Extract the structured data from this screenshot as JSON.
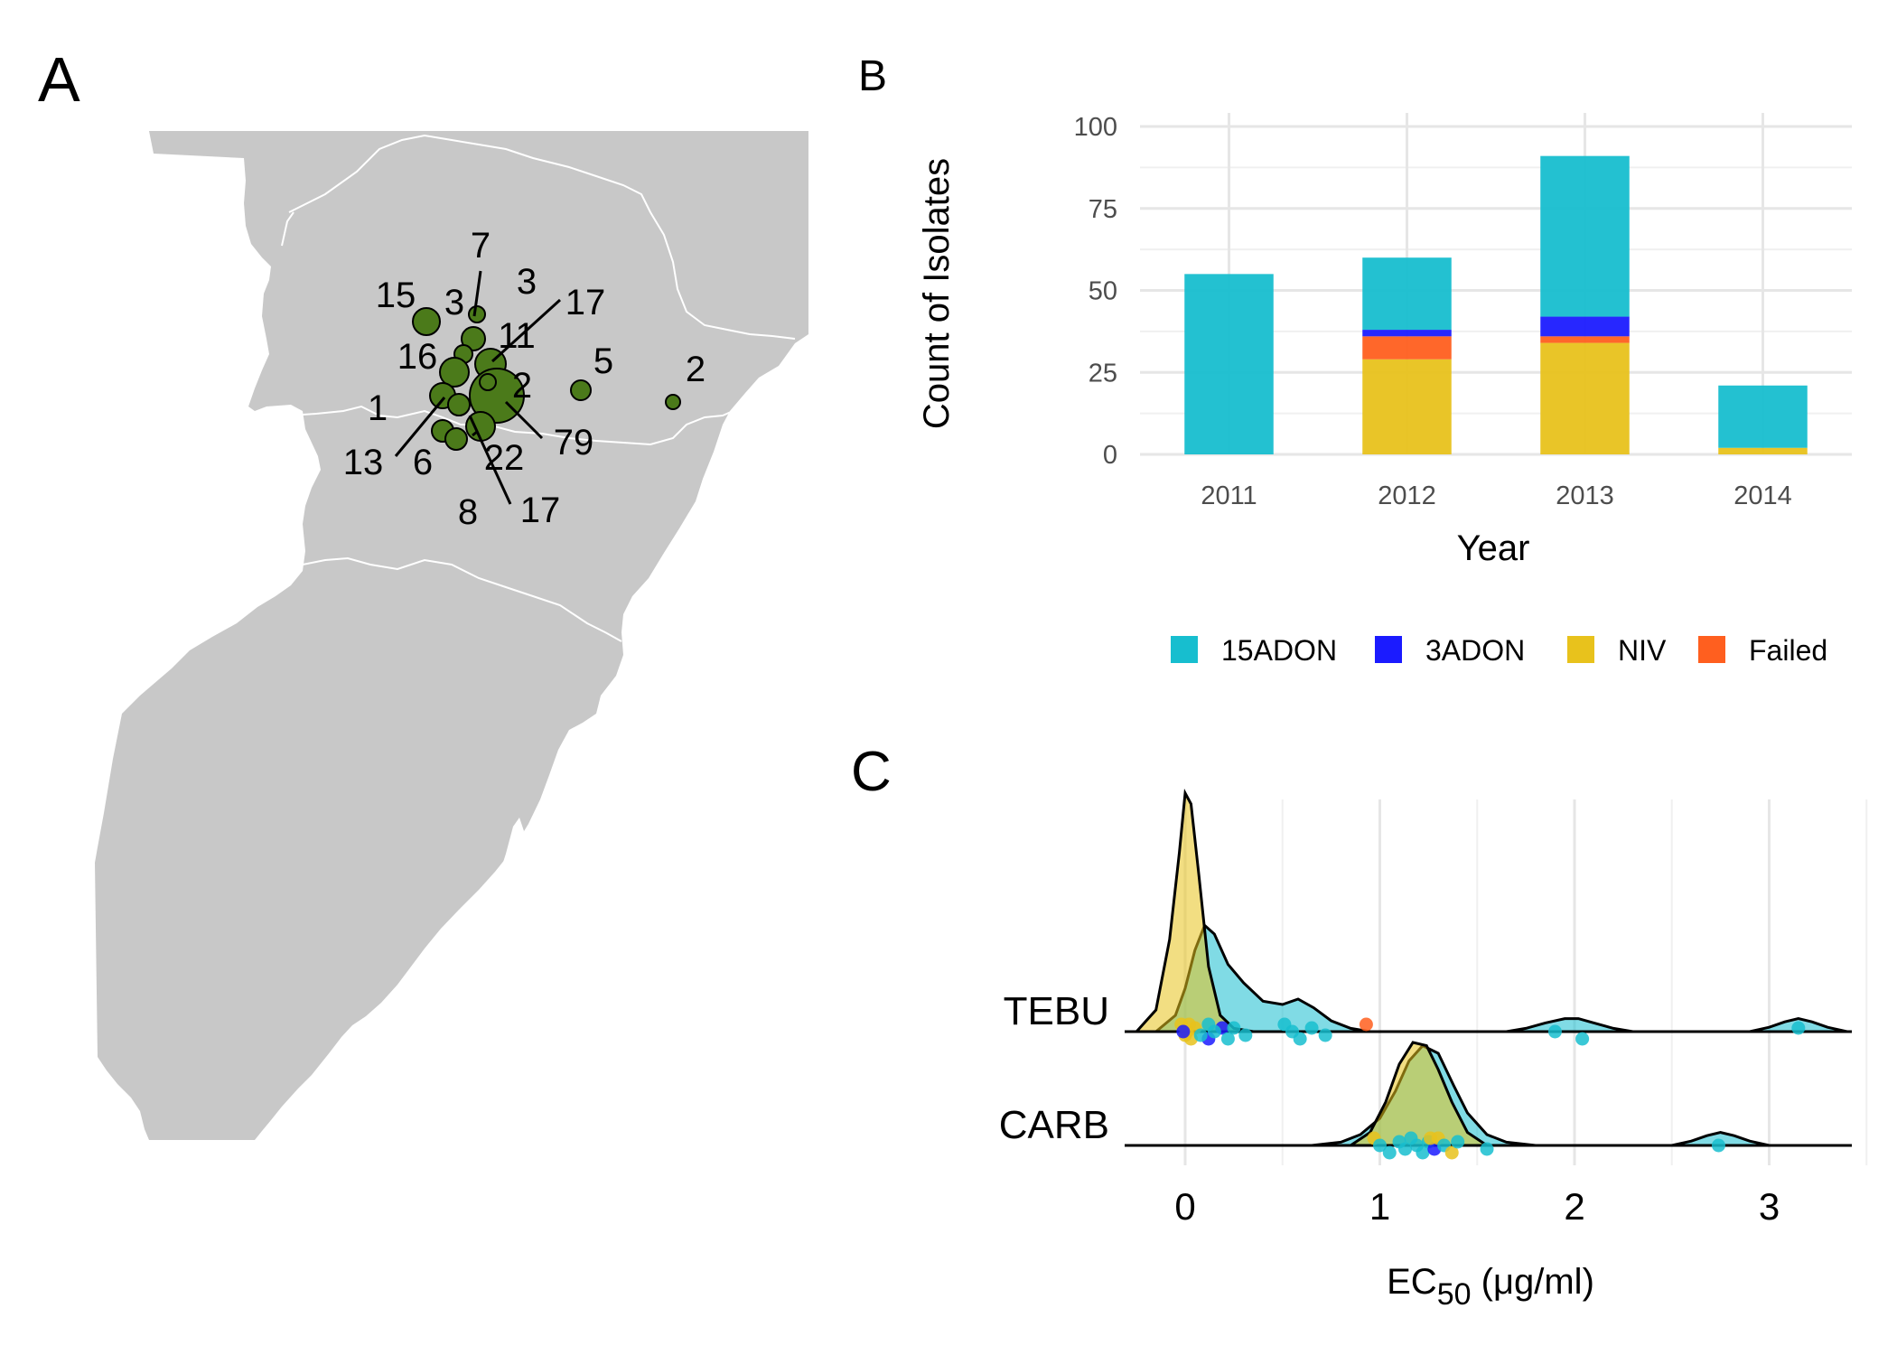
{
  "panels": {
    "a": "A",
    "b": "B",
    "c": "C"
  },
  "colors": {
    "15ADON": "#17BECF",
    "3ADON": "#1B1BFF",
    "NIV": "#E8C21C",
    "Failed": "#FF5F1F",
    "map_land": "#C8C8C8",
    "map_border": "#FFFFFF",
    "site_fill": "#4B7A1A"
  },
  "map": {
    "site_labels": [
      "7",
      "3",
      "3",
      "15",
      "17",
      "11",
      "16",
      "5",
      "2",
      "2",
      "1",
      "79",
      "13",
      "6",
      "22",
      "8",
      "17"
    ]
  },
  "chart_data": [
    {
      "type": "bar",
      "stacked": true,
      "categories": [
        "2011",
        "2012",
        "2013",
        "2014"
      ],
      "series": [
        {
          "name": "NIV",
          "values": [
            0,
            29,
            34,
            2
          ]
        },
        {
          "name": "Failed",
          "values": [
            0,
            7,
            2,
            0
          ]
        },
        {
          "name": "3ADON",
          "values": [
            0,
            2,
            6,
            0
          ]
        },
        {
          "name": "15ADON",
          "values": [
            55,
            22,
            49,
            19
          ]
        }
      ],
      "xlabel": "Year",
      "ylabel": "Count of Isolates",
      "ylim": [
        0,
        100
      ],
      "yticks": [
        "0",
        "25",
        "50",
        "75",
        "100"
      ],
      "legend": {
        "placement": "bottom",
        "entries": [
          "15ADON",
          "3ADON",
          "NIV",
          "Failed"
        ]
      },
      "grid": true
    },
    {
      "type": "ridgeline",
      "categories": [
        "TEBU",
        "CARB"
      ],
      "xlabel_main": "EC",
      "xlabel_sub": "50",
      "xlabel_unit": " (μg/ml)",
      "xlim": [
        -0.3,
        3.4
      ],
      "xticks": [
        "0",
        "1",
        "2",
        "3"
      ],
      "grid": true,
      "groups": [
        {
          "category": "TEBU",
          "densities": [
            {
              "name": "15ADON",
              "x": [
                -0.15,
                -0.05,
                0.0,
                0.05,
                0.1,
                0.15,
                0.22,
                0.3,
                0.4,
                0.5,
                0.58,
                0.66,
                0.75,
                0.85,
                0.95
              ],
              "y": [
                0.0,
                0.15,
                0.4,
                0.75,
                0.98,
                0.9,
                0.62,
                0.45,
                0.28,
                0.25,
                0.3,
                0.22,
                0.1,
                0.03,
                0.0
              ]
            },
            {
              "name": "NIV",
              "x": [
                -0.25,
                -0.15,
                -0.08,
                -0.03,
                0.0,
                0.03,
                0.07,
                0.12,
                0.18,
                0.25,
                0.35
              ],
              "y": [
                0.0,
                0.2,
                0.85,
                1.65,
                2.2,
                2.1,
                1.45,
                0.6,
                0.15,
                0.03,
                0.0
              ]
            },
            {
              "name": "15ADON",
              "x": [
                1.65,
                1.75,
                1.85,
                1.95,
                2.02,
                2.1,
                2.2,
                2.3
              ],
              "y": [
                0.0,
                0.03,
                0.08,
                0.12,
                0.12,
                0.08,
                0.03,
                0.0
              ]
            },
            {
              "name": "15ADON",
              "x": [
                2.9,
                3.0,
                3.08,
                3.15,
                3.22,
                3.3,
                3.4
              ],
              "y": [
                0.0,
                0.04,
                0.09,
                0.12,
                0.09,
                0.04,
                0.0
              ]
            }
          ],
          "points": [
            {
              "x": -0.02,
              "g": "NIV"
            },
            {
              "x": 0.01,
              "g": "NIV"
            },
            {
              "x": 0.03,
              "g": "NIV"
            },
            {
              "x": 0.05,
              "g": "NIV"
            },
            {
              "x": 0.0,
              "g": "NIV"
            },
            {
              "x": 0.02,
              "g": "NIV"
            },
            {
              "x": -0.01,
              "g": "3ADON"
            },
            {
              "x": 0.12,
              "g": "3ADON"
            },
            {
              "x": 0.19,
              "g": "3ADON"
            },
            {
              "x": 0.08,
              "g": "15ADON"
            },
            {
              "x": 0.12,
              "g": "15ADON"
            },
            {
              "x": 0.15,
              "g": "15ADON"
            },
            {
              "x": 0.22,
              "g": "15ADON"
            },
            {
              "x": 0.25,
              "g": "15ADON"
            },
            {
              "x": 0.31,
              "g": "15ADON"
            },
            {
              "x": 0.51,
              "g": "15ADON"
            },
            {
              "x": 0.55,
              "g": "15ADON"
            },
            {
              "x": 0.59,
              "g": "15ADON"
            },
            {
              "x": 0.65,
              "g": "15ADON"
            },
            {
              "x": 0.72,
              "g": "15ADON"
            },
            {
              "x": 0.93,
              "g": "Failed"
            },
            {
              "x": 1.9,
              "g": "15ADON"
            },
            {
              "x": 2.04,
              "g": "15ADON"
            },
            {
              "x": 3.15,
              "g": "15ADON"
            }
          ]
        },
        {
          "category": "CARB",
          "densities": [
            {
              "name": "15ADON",
              "x": [
                0.65,
                0.8,
                0.9,
                1.0,
                1.08,
                1.15,
                1.22,
                1.3,
                1.38,
                1.45,
                1.55,
                1.65,
                1.8
              ],
              "y": [
                0.0,
                0.03,
                0.1,
                0.25,
                0.5,
                0.78,
                0.92,
                0.85,
                0.55,
                0.3,
                0.1,
                0.03,
                0.0
              ]
            },
            {
              "name": "NIV",
              "x": [
                0.85,
                0.95,
                1.03,
                1.1,
                1.17,
                1.24,
                1.3,
                1.37,
                1.45,
                1.55
              ],
              "y": [
                0.0,
                0.12,
                0.4,
                0.75,
                0.95,
                0.92,
                0.7,
                0.4,
                0.12,
                0.0
              ]
            },
            {
              "name": "15ADON",
              "x": [
                2.5,
                2.6,
                2.68,
                2.75,
                2.82,
                2.9,
                3.0
              ],
              "y": [
                0.0,
                0.04,
                0.09,
                0.12,
                0.09,
                0.04,
                0.0
              ]
            }
          ],
          "points": [
            {
              "x": 0.97,
              "g": "NIV"
            },
            {
              "x": 1.0,
              "g": "15ADON"
            },
            {
              "x": 1.05,
              "g": "15ADON"
            },
            {
              "x": 1.1,
              "g": "15ADON"
            },
            {
              "x": 1.13,
              "g": "15ADON"
            },
            {
              "x": 1.16,
              "g": "15ADON"
            },
            {
              "x": 1.19,
              "g": "15ADON"
            },
            {
              "x": 1.22,
              "g": "15ADON"
            },
            {
              "x": 1.25,
              "g": "15ADON"
            },
            {
              "x": 1.28,
              "g": "3ADON"
            },
            {
              "x": 1.3,
              "g": "NIV"
            },
            {
              "x": 1.33,
              "g": "15ADON"
            },
            {
              "x": 1.37,
              "g": "NIV"
            },
            {
              "x": 1.4,
              "g": "15ADON"
            },
            {
              "x": 1.55,
              "g": "15ADON"
            },
            {
              "x": 1.26,
              "g": "NIV"
            },
            {
              "x": 2.74,
              "g": "15ADON"
            }
          ]
        }
      ]
    }
  ]
}
